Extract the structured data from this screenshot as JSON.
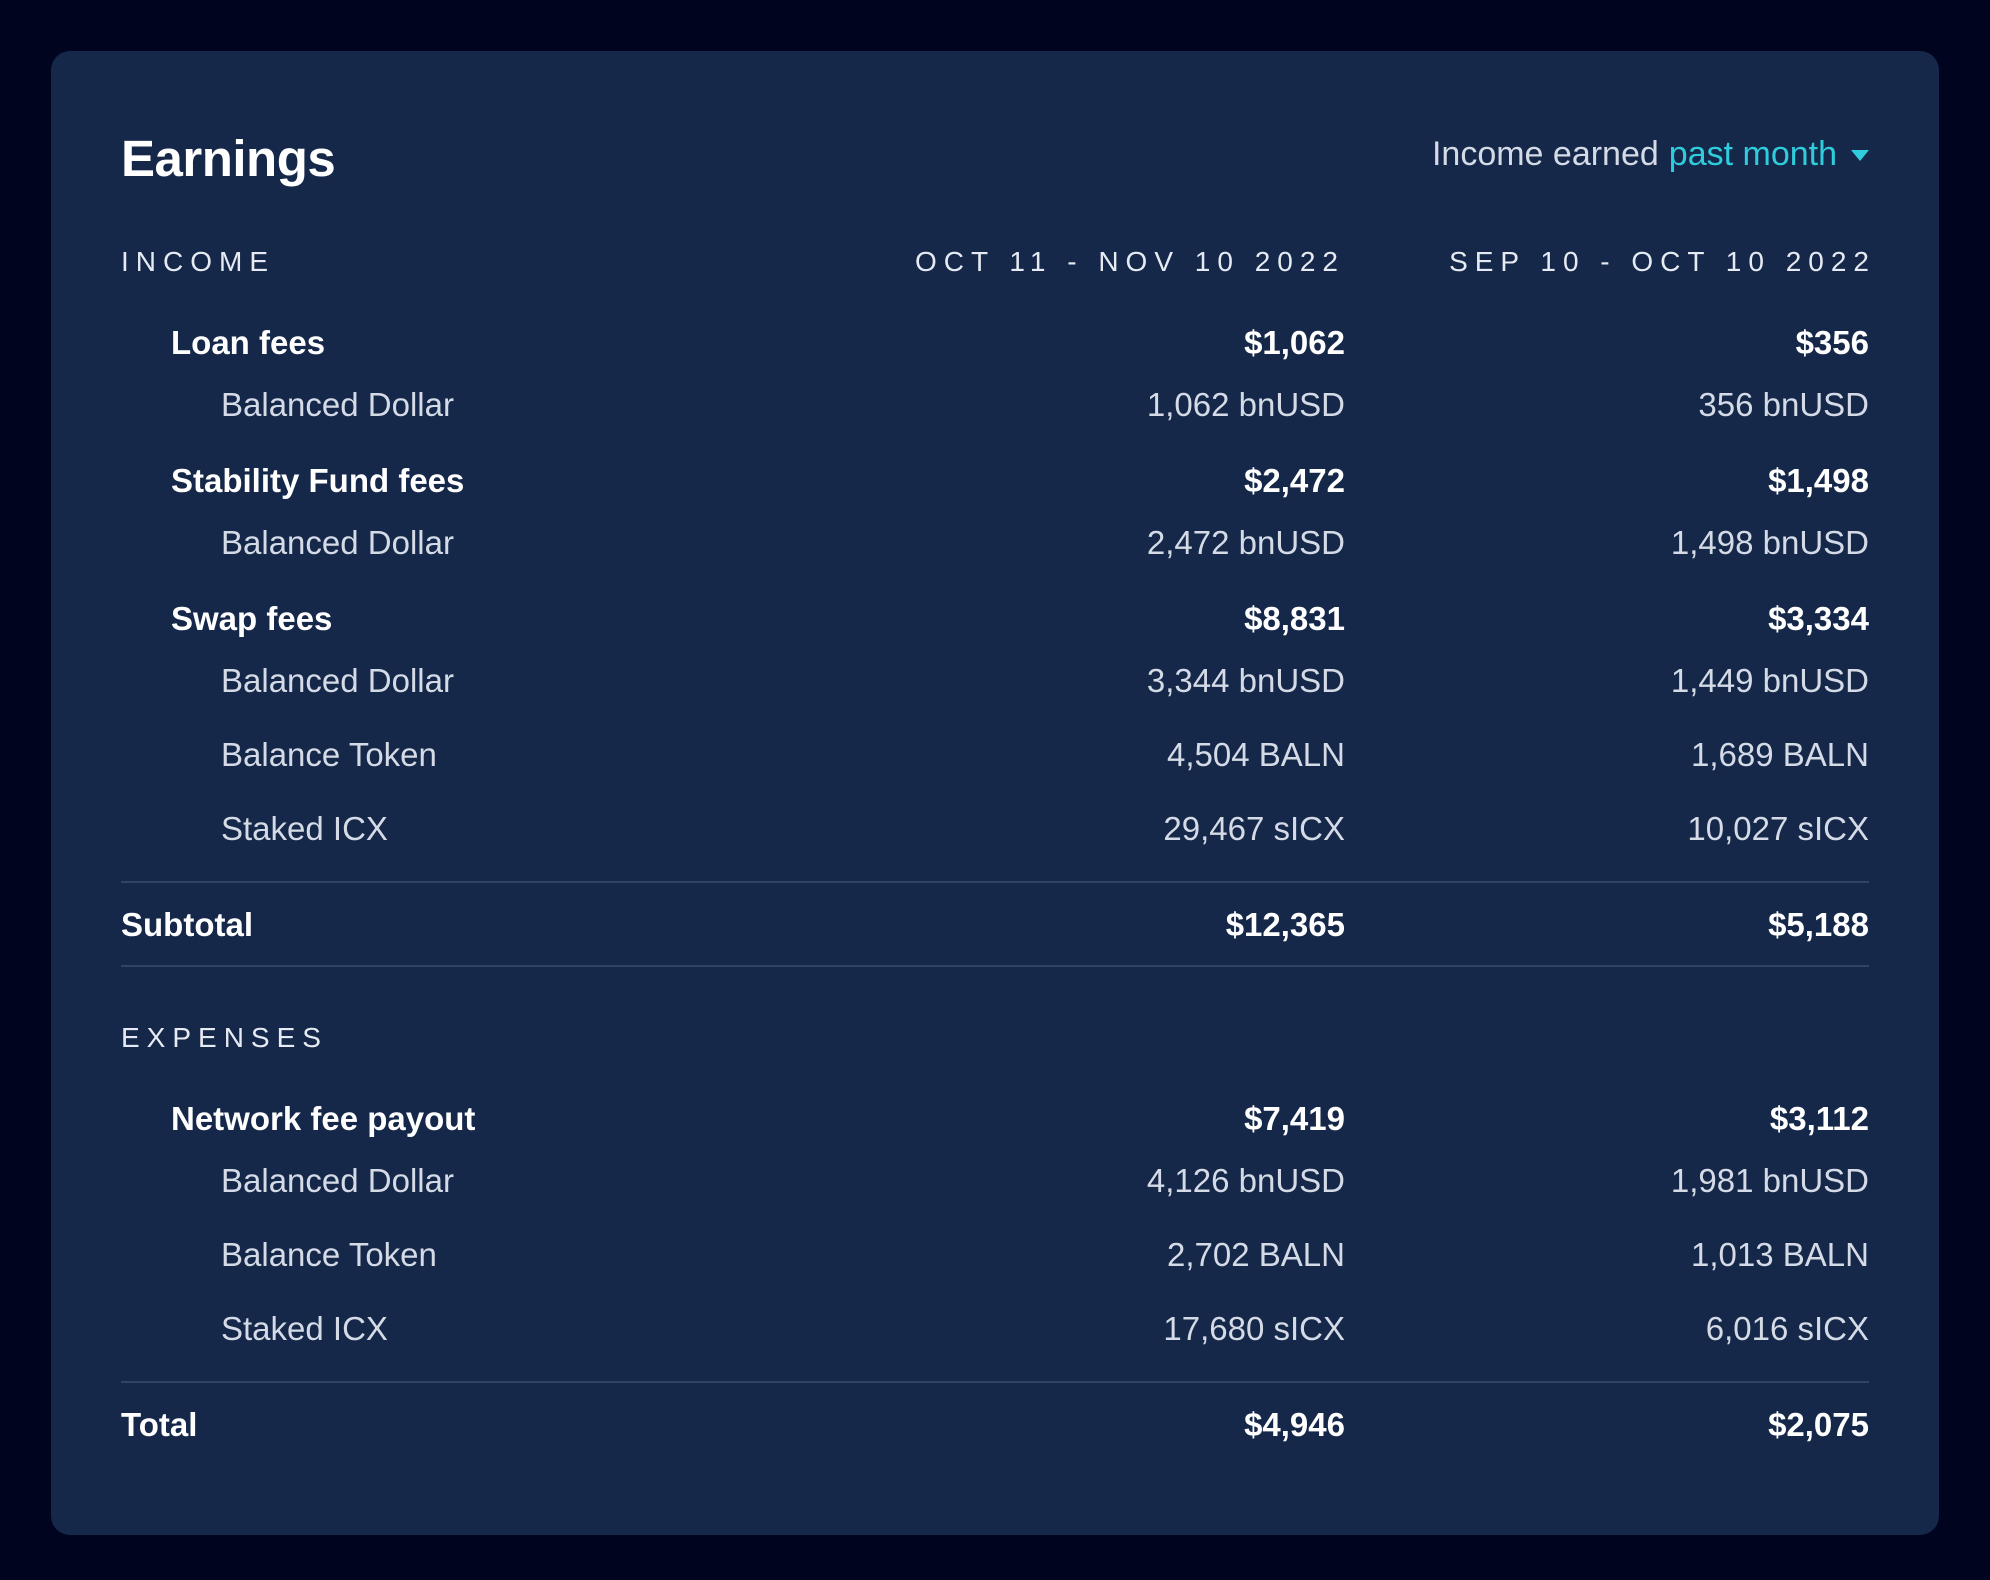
{
  "header": {
    "title": "Earnings",
    "period_prefix": "Income earned",
    "period_value": "past month",
    "period_icon": "caret-down-icon"
  },
  "columns": {
    "current": "OCT 11 - NOV 10 2022",
    "previous": "SEP 10 - OCT 10 2022"
  },
  "income": {
    "label": "INCOME",
    "categories": [
      {
        "name": "Loan fees",
        "current": "$1,062",
        "previous": "$356",
        "items": [
          {
            "name": "Balanced Dollar",
            "current": "1,062 bnUSD",
            "previous": "356 bnUSD"
          }
        ]
      },
      {
        "name": "Stability Fund fees",
        "current": "$2,472",
        "previous": "$1,498",
        "items": [
          {
            "name": "Balanced Dollar",
            "current": "2,472 bnUSD",
            "previous": "1,498 bnUSD"
          }
        ]
      },
      {
        "name": "Swap fees",
        "current": "$8,831",
        "previous": "$3,334",
        "items": [
          {
            "name": "Balanced Dollar",
            "current": "3,344 bnUSD",
            "previous": "1,449 bnUSD"
          },
          {
            "name": "Balance Token",
            "current": "4,504 BALN",
            "previous": "1,689 BALN"
          },
          {
            "name": "Staked ICX",
            "current": "29,467 sICX",
            "previous": "10,027 sICX"
          }
        ]
      }
    ],
    "subtotal": {
      "label": "Subtotal",
      "current": "$12,365",
      "previous": "$5,188"
    }
  },
  "expenses": {
    "label": "EXPENSES",
    "categories": [
      {
        "name": "Network fee payout",
        "current": "$7,419",
        "previous": "$3,112",
        "items": [
          {
            "name": "Balanced Dollar",
            "current": "4,126 bnUSD",
            "previous": "1,981 bnUSD"
          },
          {
            "name": "Balance Token",
            "current": "2,702 BALN",
            "previous": "1,013 BALN"
          },
          {
            "name": "Staked ICX",
            "current": "17,680 sICX",
            "previous": "6,016 sICX"
          }
        ]
      }
    ],
    "total": {
      "label": "Total",
      "current": "$4,946",
      "previous": "$2,075"
    }
  },
  "colors": {
    "page_bg": "#01041f",
    "card_bg": "#15284a",
    "accent": "#2fccdc",
    "divider": "#2d4466"
  }
}
